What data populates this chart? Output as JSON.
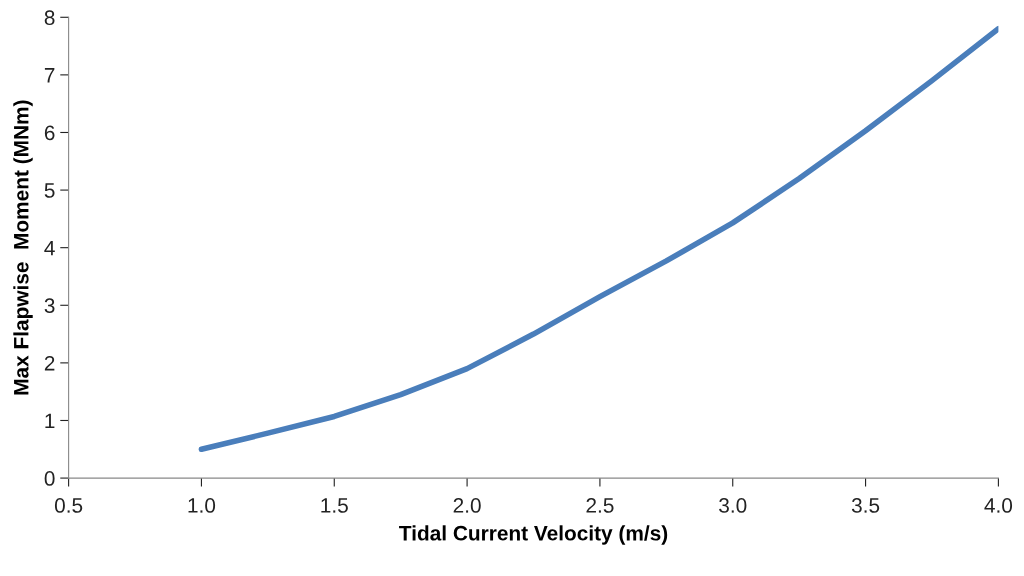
{
  "chart_data": {
    "type": "line",
    "xlabel": "Tidal Current Velocity (m/s)",
    "ylabel": "Max Flapwise  Moment (MNm)",
    "x": [
      1.0,
      1.25,
      1.5,
      1.75,
      2.0,
      2.25,
      2.5,
      2.75,
      3.0,
      3.25,
      3.5,
      3.75,
      4.0
    ],
    "series": [
      {
        "color": "#4a7ebb",
        "values": [
          0.5,
          0.78,
          1.07,
          1.45,
          1.9,
          2.5,
          3.15,
          3.77,
          4.43,
          5.2,
          6.03,
          6.9,
          7.8
        ]
      }
    ],
    "xlim": [
      0.5,
      4.0
    ],
    "xticks": [
      {
        "value": 0.5,
        "label": "0.5"
      },
      {
        "value": 1.0,
        "label": "1.0"
      },
      {
        "value": 1.5,
        "label": "1.5"
      },
      {
        "value": 2.0,
        "label": "2.0"
      },
      {
        "value": 2.5,
        "label": "2.5"
      },
      {
        "value": 3.0,
        "label": "3.0"
      },
      {
        "value": 3.5,
        "label": "3.5"
      },
      {
        "value": 4.0,
        "label": "4.0"
      }
    ],
    "ylim": [
      0,
      8
    ],
    "yticks": [
      0,
      1,
      2,
      3,
      4,
      5,
      6,
      7,
      8
    ],
    "grid": false,
    "legend": false,
    "marker": "none",
    "line_style": "solid"
  }
}
